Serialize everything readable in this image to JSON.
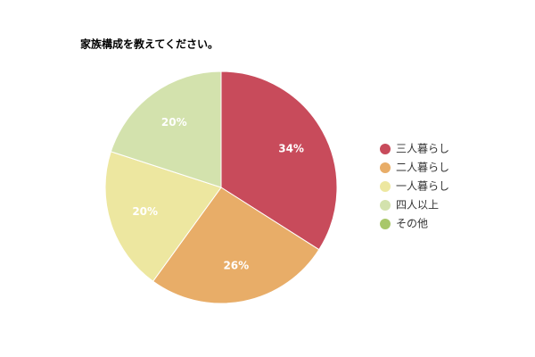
{
  "chart_data": {
    "type": "pie",
    "title": "家族構成を教えてください。",
    "categories": [
      "三人暮らし",
      "二人暮らし",
      "一人暮らし",
      "四人以上",
      "その他"
    ],
    "values": [
      34,
      26,
      20,
      20,
      0
    ],
    "value_labels": [
      "34%",
      "26%",
      "20%",
      "20%",
      null
    ],
    "colors": [
      "#c84b5b",
      "#e8ad68",
      "#ede7a0",
      "#d3e2ad",
      "#a8c76a"
    ],
    "legend": "right"
  }
}
